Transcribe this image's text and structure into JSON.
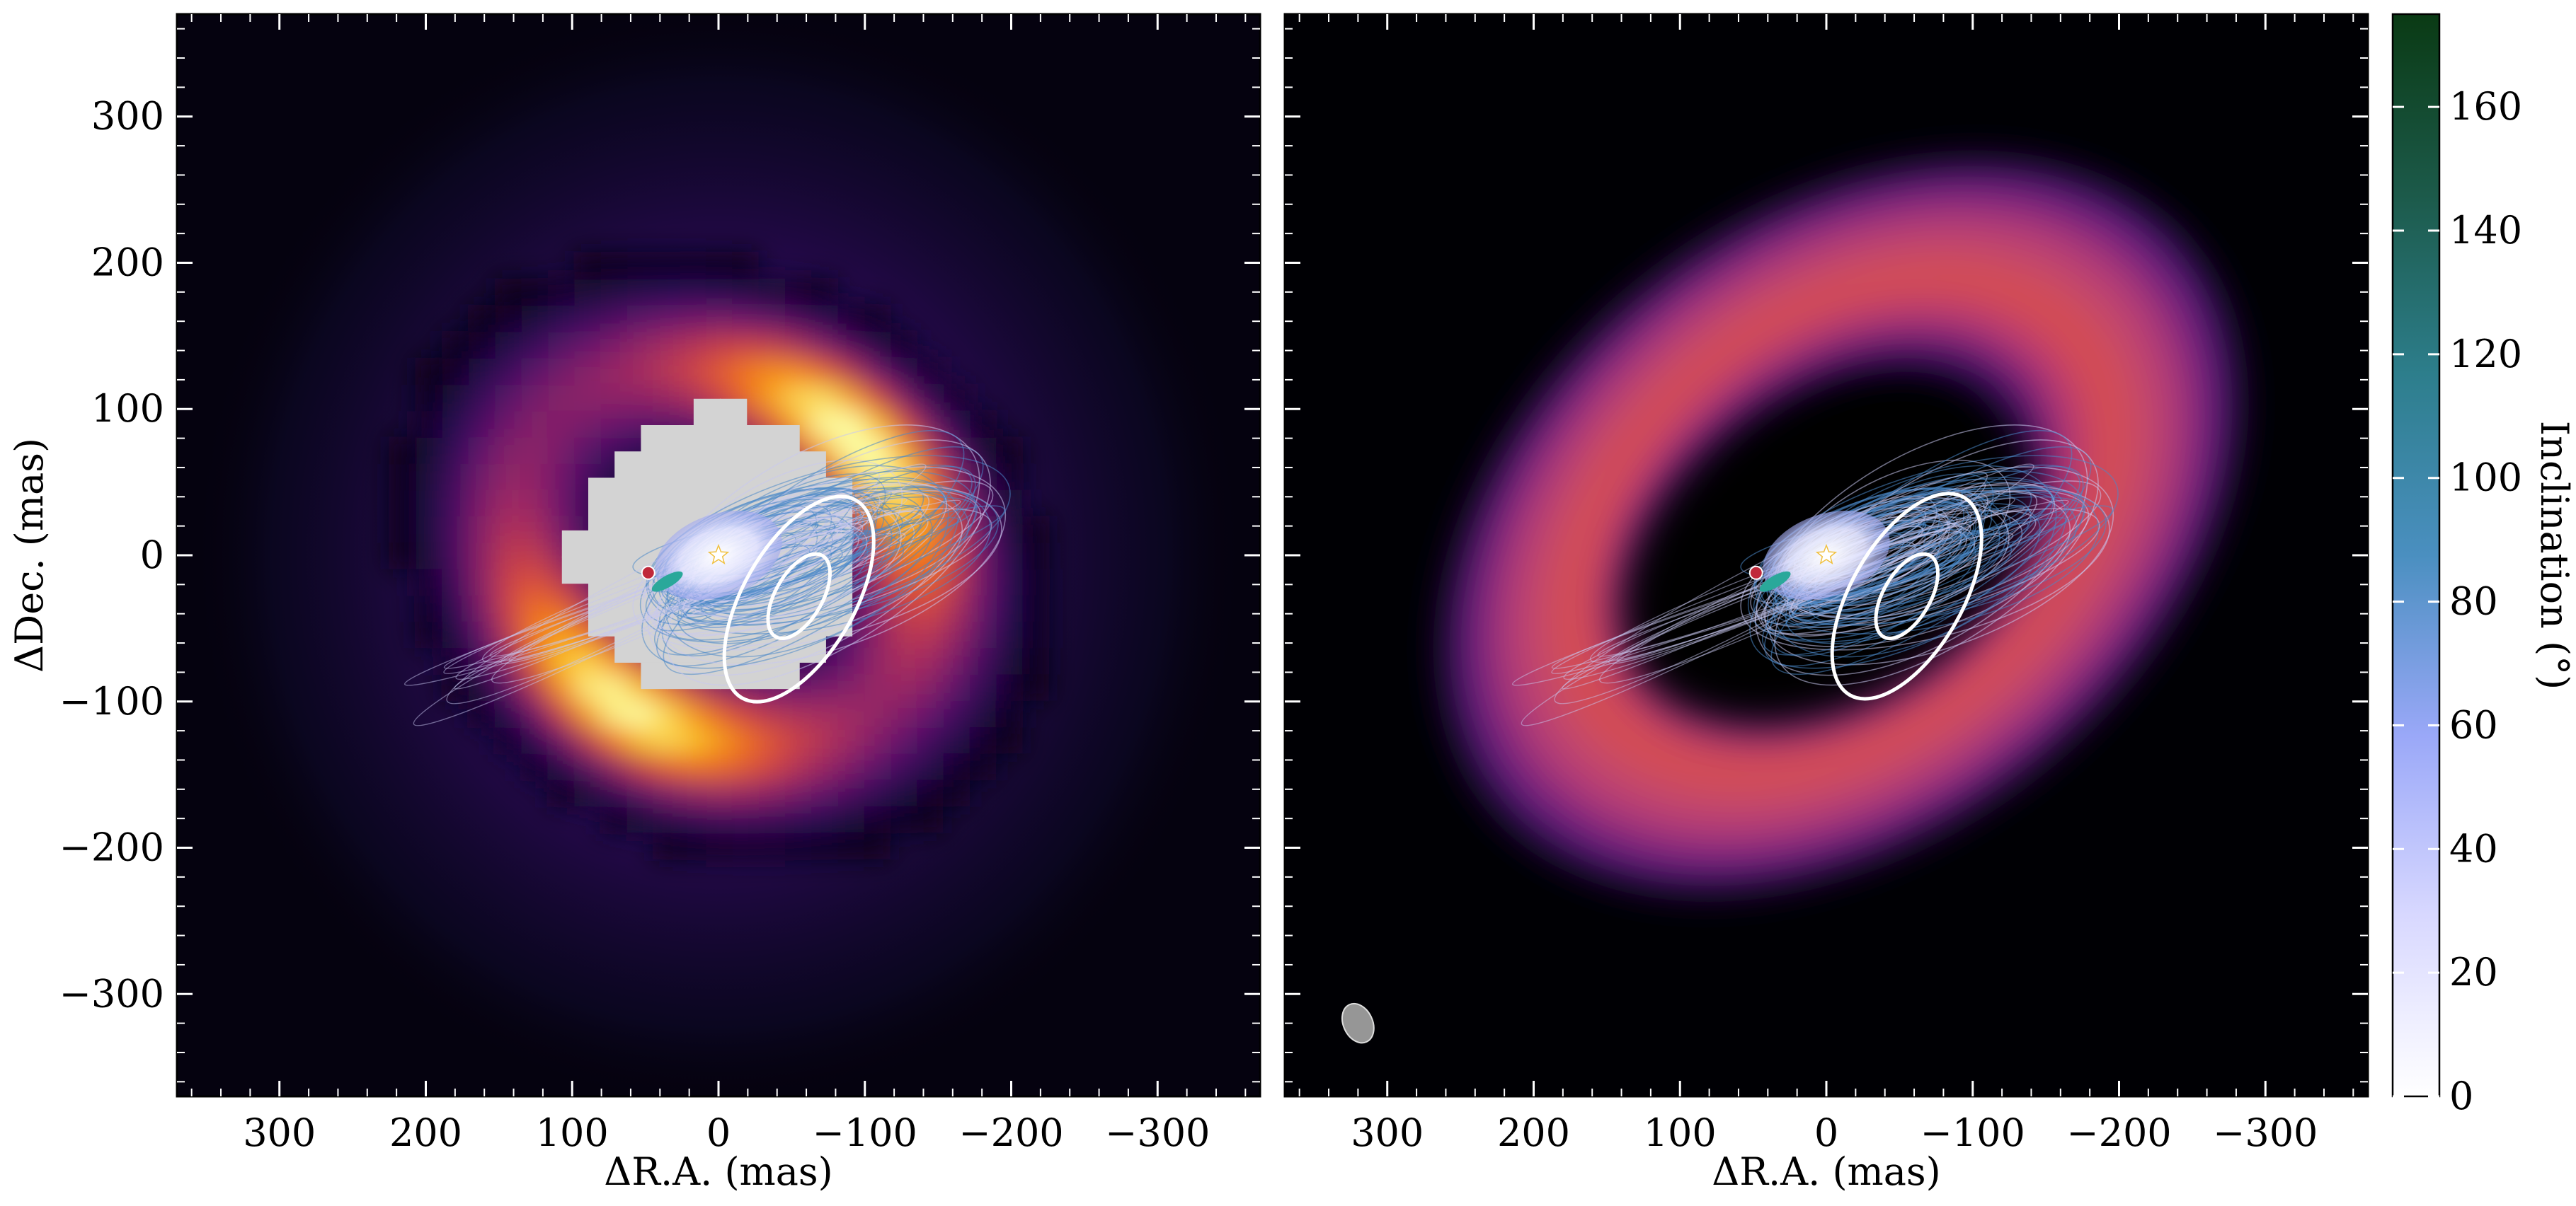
{
  "chart_data": [
    {
      "type": "heatmap",
      "panel": "left",
      "xlabel": "ΔR.A. (mas)",
      "ylabel": "ΔDec. (mas)",
      "xlim": [
        370,
        -370
      ],
      "ylim": [
        -370,
        370
      ],
      "xticks": [
        300,
        200,
        100,
        0,
        -100,
        -200,
        -300
      ],
      "xtick_labels": [
        "300",
        "200",
        "100",
        "0",
        "−100",
        "−200",
        "−300"
      ],
      "yticks": [
        300,
        200,
        100,
        0,
        -100,
        -200,
        -300
      ],
      "ytick_labels": [
        "300",
        "200",
        "100",
        "0",
        "−100",
        "−200",
        "−300"
      ],
      "colormap": "inferno",
      "mask_radius": 100,
      "mask_color": "#d3d3d3",
      "star": {
        "x": 0,
        "y": 0
      },
      "planet": {
        "x": 48,
        "y": -12
      },
      "contours": [
        {
          "cx": -55,
          "cy": -30,
          "semi_major": 78,
          "semi_minor": 38,
          "pa_deg": 30
        },
        {
          "cx": -55,
          "cy": -28,
          "semi_major": 32,
          "semi_minor": 16,
          "pa_deg": 30
        }
      ],
      "ring_peaks": [
        {
          "x": 90,
          "y": -140
        },
        {
          "x": -120,
          "y": 100
        }
      ]
    },
    {
      "type": "heatmap",
      "panel": "right",
      "xlabel": "ΔR.A. (mas)",
      "ylabel": "",
      "xlim": [
        370,
        -370
      ],
      "ylim": [
        -370,
        370
      ],
      "xticks": [
        300,
        200,
        100,
        0,
        -100,
        -200,
        -300
      ],
      "xtick_labels": [
        "300",
        "200",
        "100",
        "0",
        "−100",
        "−200",
        "−300"
      ],
      "yticks": [
        300,
        200,
        100,
        0,
        -100,
        -200,
        -300
      ],
      "ytick_labels": [],
      "colormap": "magma",
      "disk": {
        "cx": -10,
        "cy": 20,
        "semi_major": 310,
        "semi_minor": 215,
        "pa_deg": 38
      },
      "cavity": {
        "cx": 0,
        "cy": 0,
        "semi_major": 150,
        "semi_minor": 100,
        "pa_deg": 30
      },
      "star": {
        "x": 0,
        "y": 0
      },
      "planet": {
        "x": 48,
        "y": -12
      },
      "beam": {
        "x": 320,
        "y": -320,
        "semi_major": 14,
        "semi_minor": 10,
        "pa_deg": 25
      },
      "contours": [
        {
          "cx": -55,
          "cy": -28,
          "semi_major": 78,
          "semi_minor": 38,
          "pa_deg": 30
        },
        {
          "cx": -55,
          "cy": -28,
          "semi_major": 32,
          "semi_minor": 16,
          "pa_deg": 30
        }
      ]
    }
  ],
  "colorbar": {
    "label": "Inclination (°)",
    "range": [
      0,
      175
    ],
    "ticks": [
      0,
      20,
      40,
      60,
      80,
      100,
      120,
      140,
      160
    ],
    "tick_labels": [
      "0",
      "20",
      "40",
      "60",
      "80",
      "100",
      "120",
      "140",
      "160"
    ],
    "colors": [
      "#ffffff",
      "#d8d8ff",
      "#9aa8f8",
      "#4a8fc0",
      "#2d7e8c",
      "#1c5a4a",
      "#0a3a14"
    ]
  },
  "orbit_colors": {
    "blue": "#4a88c8",
    "lavender": "#c8c8f0",
    "teal": "#2aa89a",
    "planet": "#c0283a"
  }
}
